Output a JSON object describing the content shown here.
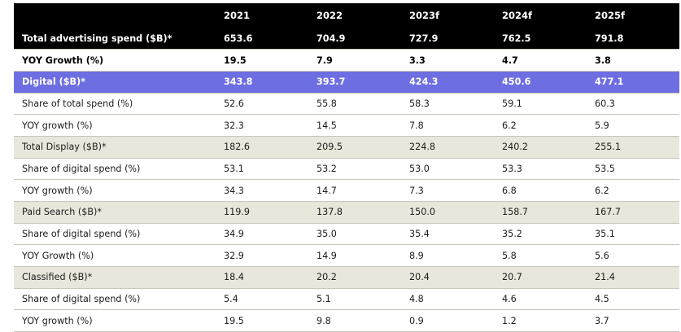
{
  "table": {
    "headers": [
      "",
      "2021",
      "2022",
      "2023f",
      "2024f",
      "2025f"
    ],
    "rows": [
      {
        "style": "total",
        "label": "Total advertising spend ($B)*",
        "values": [
          "653.6",
          "704.9",
          "727.9",
          "762.5",
          "791.8"
        ]
      },
      {
        "style": "yoy",
        "label": "YOY Growth (%)",
        "values": [
          "19.5",
          "7.9",
          "3.3",
          "4.7",
          "3.8"
        ]
      },
      {
        "style": "digital",
        "label": "Digital ($B)*",
        "values": [
          "343.8",
          "393.7",
          "424.3",
          "450.6",
          "477.1"
        ]
      },
      {
        "style": "plain",
        "label": "Share of total spend (%)",
        "values": [
          "52.6",
          "55.8",
          "58.3",
          "59.1",
          "60.3"
        ]
      },
      {
        "style": "plain",
        "label": "YOY growth (%)",
        "values": [
          "32.3",
          "14.5",
          "7.8",
          "6.2",
          "5.9"
        ]
      },
      {
        "style": "sub",
        "label": "Total Display ($B)*",
        "values": [
          "182.6",
          "209.5",
          "224.8",
          "240.2",
          "255.1"
        ]
      },
      {
        "style": "plain",
        "label": "Share of digital spend (%)",
        "values": [
          "53.1",
          "53.2",
          "53.0",
          "53.3",
          "53.5"
        ]
      },
      {
        "style": "plain",
        "label": "YOY growth (%)",
        "values": [
          "34.3",
          "14.7",
          "7.3",
          "6.8",
          "6.2"
        ]
      },
      {
        "style": "sub",
        "label": "Paid Search ($B)*",
        "values": [
          "119.9",
          "137.8",
          "150.0",
          "158.7",
          "167.7"
        ]
      },
      {
        "style": "plain",
        "label": "Share of digital spend (%)",
        "values": [
          "34.9",
          "35.0",
          "35.4",
          "35.2",
          "35.1"
        ]
      },
      {
        "style": "plain",
        "label": "YOY Growth (%)",
        "values": [
          "32.9",
          "14.9",
          "8.9",
          "5.8",
          "5.6"
        ]
      },
      {
        "style": "sub",
        "label": "Classified ($B)*",
        "values": [
          "18.4",
          "20.2",
          "20.4",
          "20.7",
          "21.4"
        ]
      },
      {
        "style": "plain",
        "label": "Share of digital spend (%)",
        "values": [
          "5.4",
          "5.1",
          "4.8",
          "4.6",
          "4.5"
        ]
      },
      {
        "style": "plain",
        "label": "YOY growth (%)",
        "values": [
          "19.5",
          "9.8",
          "0.9",
          "1.2",
          "3.7"
        ]
      }
    ]
  }
}
